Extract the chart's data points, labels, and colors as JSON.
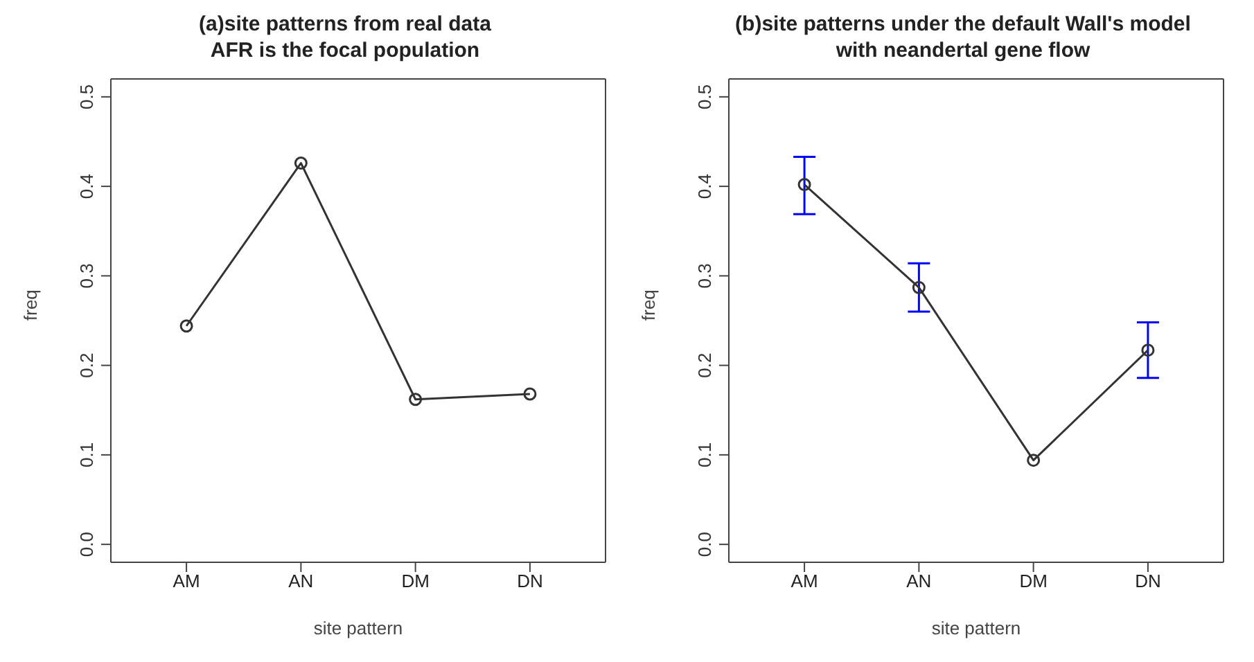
{
  "chart_data": [
    {
      "type": "line",
      "title": "(a)site patterns from real data\nAFR is the focal population",
      "xlabel": "site pattern",
      "ylabel": "freq",
      "categories": [
        "AM",
        "AN",
        "DM",
        "DN"
      ],
      "series": [
        {
          "color": "#333333",
          "values": [
            0.244,
            0.426,
            0.162,
            0.168
          ]
        }
      ],
      "ylim": [
        -0.02,
        0.52
      ],
      "yticks": [
        {
          "value": 0,
          "label": "0.0"
        },
        0.1,
        0.2,
        0.3,
        0.4,
        0.5
      ],
      "marker": "circle",
      "grid": false
    },
    {
      "type": "line",
      "title": "(b)site patterns under the default Wall's model\nwith neandertal gene flow",
      "xlabel": "site pattern",
      "ylabel": "freq",
      "categories": [
        "AM",
        "AN",
        "DM",
        "DN"
      ],
      "series": [
        {
          "color": "#333333",
          "values": [
            0.402,
            0.287,
            0.094,
            0.217
          ],
          "errors": [
            [
              0.369,
              0.433
            ],
            [
              0.26,
              0.314
            ],
            null,
            [
              0.186,
              0.248
            ]
          ]
        }
      ],
      "ylim": [
        -0.02,
        0.52
      ],
      "yticks": [
        {
          "value": 0,
          "label": "0.0"
        },
        0.1,
        0.2,
        0.3,
        0.4,
        0.5
      ],
      "marker": "circle",
      "grid": false
    }
  ]
}
